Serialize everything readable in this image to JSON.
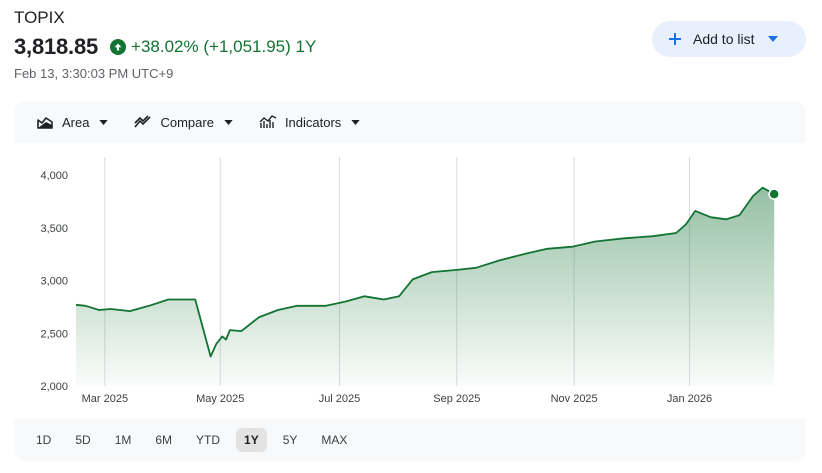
{
  "quote": {
    "symbol": "TOPIX",
    "price": "3,818.85",
    "change": "+38.02% (+1,051.95) 1Y",
    "timestamp": "Feb 13, 3:30:03 PM UTC+9"
  },
  "actions": {
    "add_to_list": "Add to list"
  },
  "toolbar": {
    "area": "Area",
    "compare": "Compare",
    "indicators": "Indicators"
  },
  "ranges": [
    "1D",
    "5D",
    "1M",
    "6M",
    "YTD",
    "1Y",
    "5Y",
    "MAX"
  ],
  "active_range": "1Y",
  "colors": {
    "positive": "#137333",
    "accent_bg": "#e8f0fe",
    "primary": "#1a73e8"
  },
  "chart_data": {
    "type": "area",
    "y_ticks": [
      "4,000",
      "3,500",
      "3,000",
      "2,500",
      "2,000"
    ],
    "y_tick_values": [
      4000,
      3500,
      3000,
      2500,
      2000
    ],
    "x_ticks": [
      "Mar 2025",
      "May 2025",
      "Jul 2025",
      "Sep 2025",
      "Nov 2025",
      "Jan 2026"
    ],
    "x_tick_days": [
      15,
      75,
      137,
      198,
      259,
      319
    ],
    "ylim": [
      2000,
      4000
    ],
    "xlim_days": [
      0,
      365
    ],
    "grid": "vertical",
    "series": [
      {
        "x_days": [
          0,
          5,
          12,
          18,
          28,
          38,
          48,
          62,
          66,
          70,
          73,
          76,
          78,
          80,
          86,
          95,
          105,
          115,
          130,
          140,
          150,
          160,
          168,
          175,
          185,
          198,
          208,
          220,
          235,
          245,
          258,
          270,
          285,
          300,
          312,
          317,
          322,
          330,
          338,
          345,
          352,
          357,
          360,
          363
        ],
        "values": [
          2770,
          2760,
          2720,
          2730,
          2710,
          2760,
          2820,
          2820,
          2550,
          2280,
          2400,
          2470,
          2440,
          2530,
          2520,
          2650,
          2720,
          2760,
          2760,
          2800,
          2850,
          2820,
          2850,
          3010,
          3080,
          3100,
          3120,
          3190,
          3260,
          3300,
          3320,
          3370,
          3400,
          3420,
          3450,
          3530,
          3660,
          3600,
          3580,
          3620,
          3800,
          3880,
          3850,
          3818.85
        ]
      }
    ]
  }
}
